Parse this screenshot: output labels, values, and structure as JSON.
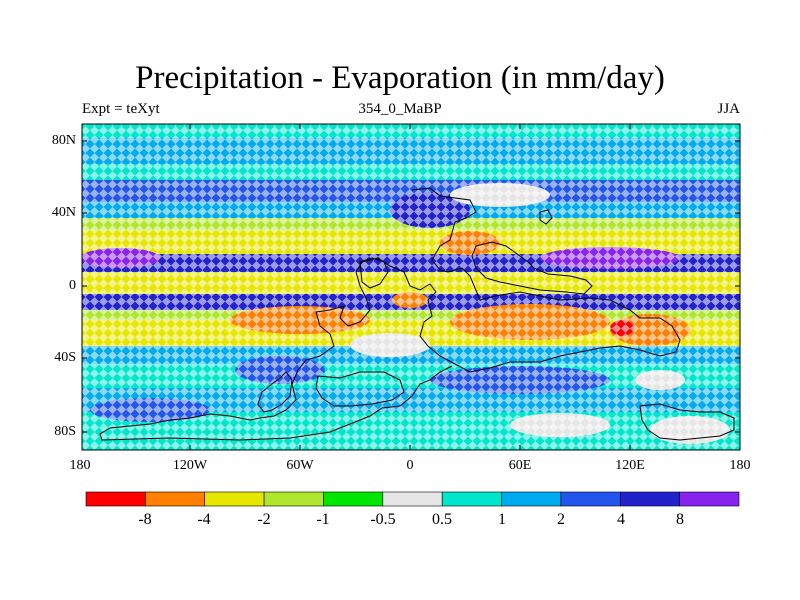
{
  "title": "Precipitation - Evaporation (in mm/day)",
  "subtitle_left": "Expt = teXyt",
  "subtitle_center": "354_0_MaBP",
  "subtitle_right": "JJA",
  "lat_labels": [
    "80N",
    "40N",
    "0",
    "40S",
    "80S"
  ],
  "lon_labels": [
    "180",
    "120W",
    "60W",
    "0",
    "60E",
    "120E",
    "180"
  ],
  "colorbar": {
    "labels": [
      "-8",
      "-4",
      "-2",
      "-1",
      "-0.5",
      "0.5",
      "1",
      "2",
      "4",
      "8"
    ],
    "colors": [
      "#ff0000",
      "#ff7f00",
      "#e6e600",
      "#b0e62e",
      "#00e600",
      "#e6e6e6",
      "#00e6cc",
      "#00aaee",
      "#2255ee",
      "#2222cc",
      "#8822ee"
    ]
  },
  "colors": {
    "land_outline": "#000000",
    "frame": "#000000"
  }
}
